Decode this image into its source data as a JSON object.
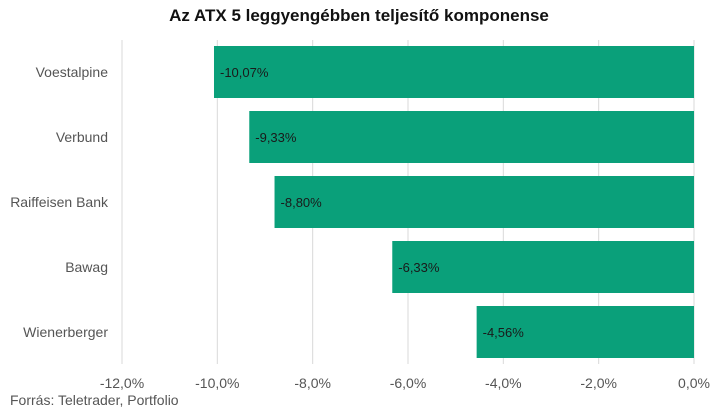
{
  "chart_data": {
    "type": "bar",
    "orientation": "horizontal",
    "title": "Az ATX 5 leggyengébben teljesítő komponense",
    "categories": [
      "Voestalpine",
      "Verbund",
      "Raiffeisen Bank",
      "Bawag",
      "Wienerberger"
    ],
    "values": [
      -10.07,
      -9.33,
      -8.8,
      -6.33,
      -4.56
    ],
    "data_labels": [
      "-10,07%",
      "-9,33%",
      "-8,80%",
      "-6,33%",
      "-4,56%"
    ],
    "x_ticks": [
      -12,
      -10,
      -8,
      -6,
      -4,
      -2,
      0
    ],
    "x_tick_labels": [
      "-12,0%",
      "-10,0%",
      "-8,0%",
      "-6,0%",
      "-4,0%",
      "-2,0%",
      "0,0%"
    ],
    "xlim": [
      -12,
      0
    ],
    "bar_color": "#0aa07a",
    "grid": true,
    "xlabel": "",
    "ylabel": ""
  },
  "source": "Forrás: Teletrader, Portfolio"
}
